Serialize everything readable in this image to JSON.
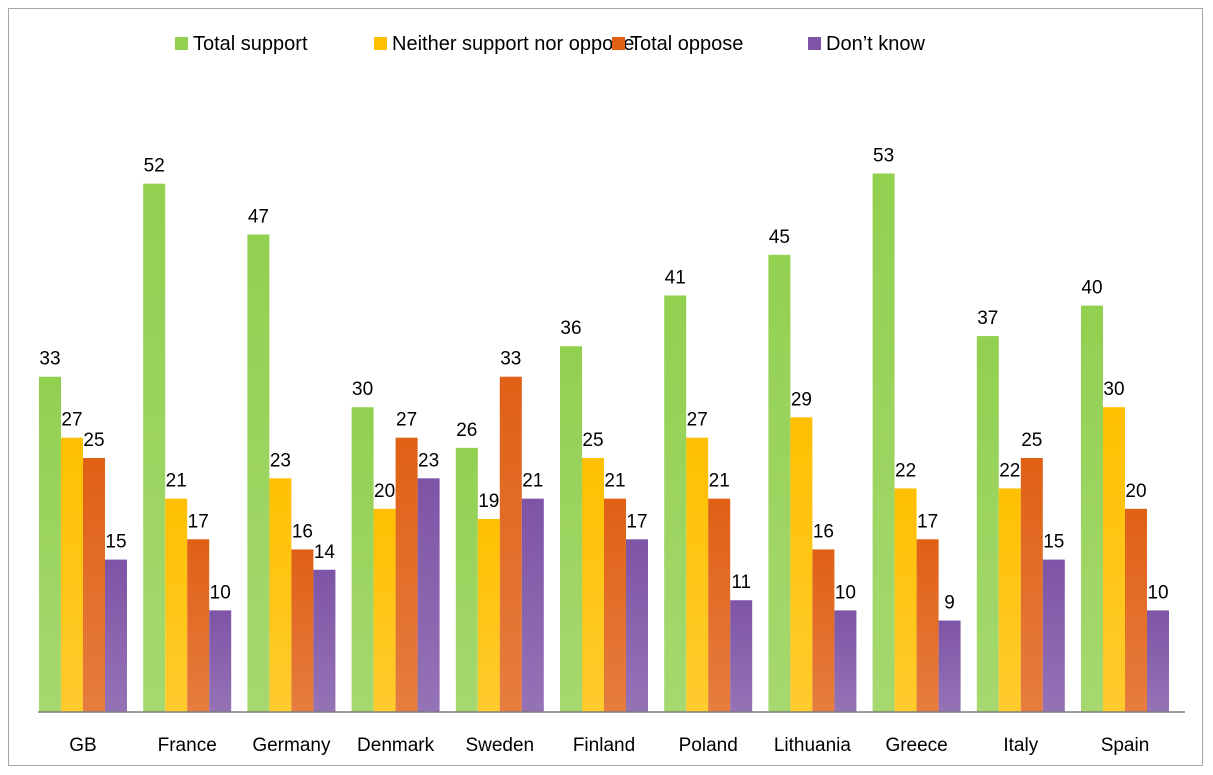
{
  "chart_data": {
    "type": "bar",
    "title": "",
    "xlabel": "",
    "ylabel": "",
    "ylim": [
      0,
      60
    ],
    "grid": false,
    "legend_position": "top",
    "categories": [
      "GB",
      "France",
      "Germany",
      "Denmark",
      "Sweden",
      "Finland",
      "Poland",
      "Lithuania",
      "Greece",
      "Italy",
      "Spain"
    ],
    "series": [
      {
        "name": "Total support",
        "color": "#92d050",
        "values": [
          33,
          52,
          47,
          30,
          26,
          36,
          41,
          45,
          53,
          37,
          40
        ]
      },
      {
        "name": "Neither support nor oppose",
        "color": "#ffc000",
        "values": [
          27,
          21,
          23,
          20,
          19,
          25,
          27,
          29,
          22,
          22,
          30
        ]
      },
      {
        "name": "Total oppose",
        "color": "#e06015",
        "values": [
          25,
          17,
          16,
          27,
          33,
          21,
          21,
          16,
          17,
          25,
          20
        ]
      },
      {
        "name": "Don’t know",
        "color": "#7e54a6",
        "values": [
          15,
          10,
          14,
          23,
          21,
          17,
          11,
          10,
          9,
          15,
          10
        ]
      }
    ]
  }
}
